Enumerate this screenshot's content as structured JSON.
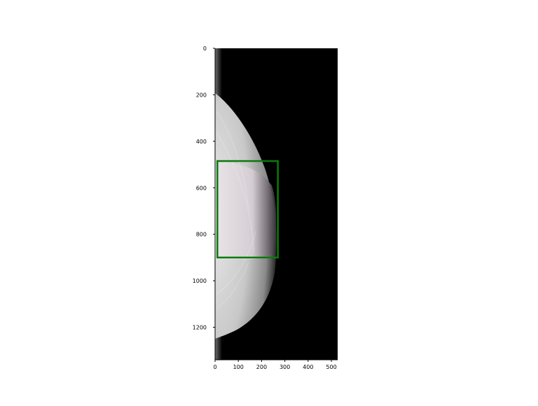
{
  "image": {
    "modality": "mammogram",
    "colors": {
      "background": "#000000",
      "tissue": "#cfcfcf",
      "roi_box": "#0a7a0a"
    }
  },
  "axes": {
    "x_ticks": [
      "0",
      "100",
      "200",
      "300",
      "400",
      "500"
    ],
    "y_ticks": [
      "0",
      "200",
      "400",
      "600",
      "800",
      "1000",
      "1200"
    ]
  },
  "roi": {
    "label": "",
    "x_range": [
      10,
      270
    ],
    "y_range": [
      485,
      900
    ]
  }
}
